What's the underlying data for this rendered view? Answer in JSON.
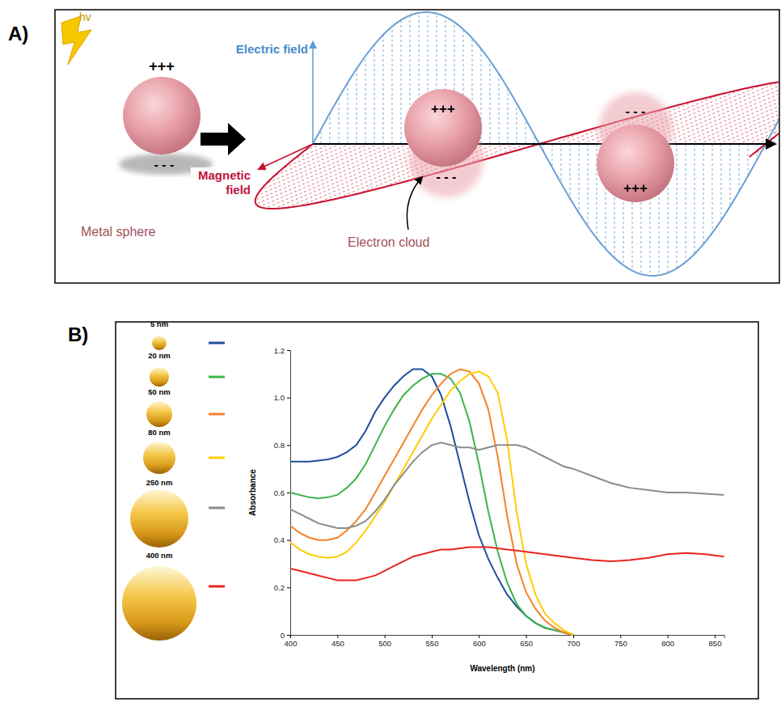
{
  "diagram": {
    "label": "A)",
    "photon": "hv",
    "electric_field": "Electric field",
    "magnetic_field": "Magnetic field",
    "electron_cloud": "Electron cloud",
    "metal_sphere": {
      "label": "Metal sphere",
      "top_charge": "+++",
      "bottom_charge": "- - -"
    },
    "spheres": [
      {
        "top_charge": "+++",
        "bottom_charge": "- - -"
      },
      {
        "top_charge": "- - -",
        "bottom_charge": "+++"
      }
    ]
  },
  "chart_data": {
    "type": "line",
    "panel_label": "B)",
    "x_label": "Wavelength (nm)",
    "y_label": "Absorbance",
    "x": [
      400,
      410,
      420,
      430,
      440,
      450,
      460,
      470,
      480,
      490,
      500,
      510,
      520,
      530,
      540,
      550,
      560,
      570,
      580,
      590,
      600,
      610,
      620,
      630,
      640,
      650,
      660,
      670,
      680,
      690,
      700,
      720,
      740,
      760,
      780,
      800,
      820,
      840,
      860
    ],
    "series": [
      {
        "name": "5 nm",
        "color": "#1f4f9e",
        "values": [
          0.73,
          0.73,
          0.73,
          0.735,
          0.74,
          0.75,
          0.77,
          0.8,
          0.86,
          0.94,
          1.0,
          1.05,
          1.09,
          1.12,
          1.12,
          1.09,
          1.01,
          0.88,
          0.72,
          0.56,
          0.42,
          0.32,
          0.24,
          0.17,
          0.12,
          0.08,
          0.05,
          0.03,
          0.02,
          0.01,
          0,
          null,
          null,
          null,
          null,
          null,
          null,
          null,
          null
        ]
      },
      {
        "name": "20 nm",
        "color": "#3db54a",
        "values": [
          0.6,
          0.59,
          0.58,
          0.575,
          0.58,
          0.59,
          0.62,
          0.66,
          0.72,
          0.8,
          0.88,
          0.95,
          1.01,
          1.05,
          1.08,
          1.1,
          1.1,
          1.08,
          1.02,
          0.9,
          0.72,
          0.52,
          0.35,
          0.22,
          0.13,
          0.08,
          0.05,
          0.03,
          0.02,
          0.01,
          0,
          null,
          null,
          null,
          null,
          null,
          null,
          null,
          null
        ]
      },
      {
        "name": "50 nm",
        "color": "#f5822a",
        "values": [
          0.46,
          0.43,
          0.41,
          0.4,
          0.4,
          0.41,
          0.44,
          0.48,
          0.53,
          0.6,
          0.67,
          0.74,
          0.81,
          0.88,
          0.95,
          1.01,
          1.06,
          1.1,
          1.12,
          1.11,
          1.06,
          0.95,
          0.75,
          0.5,
          0.3,
          0.18,
          0.11,
          0.06,
          0.03,
          0.01,
          0,
          null,
          null,
          null,
          null,
          null,
          null,
          null,
          null
        ]
      },
      {
        "name": "80 nm",
        "color": "#ffcc00",
        "values": [
          0.39,
          0.36,
          0.34,
          0.33,
          0.325,
          0.33,
          0.35,
          0.39,
          0.44,
          0.5,
          0.56,
          0.63,
          0.7,
          0.77,
          0.84,
          0.91,
          0.97,
          1.03,
          1.07,
          1.1,
          1.11,
          1.09,
          1.02,
          0.82,
          0.52,
          0.3,
          0.17,
          0.09,
          0.05,
          0.02,
          0,
          null,
          null,
          null,
          null,
          null,
          null,
          null,
          null
        ]
      },
      {
        "name": "250 nm",
        "color": "#8c8c8c",
        "values": [
          0.53,
          0.51,
          0.49,
          0.47,
          0.46,
          0.45,
          0.45,
          0.46,
          0.48,
          0.52,
          0.57,
          0.63,
          0.68,
          0.73,
          0.77,
          0.8,
          0.81,
          0.8,
          0.79,
          0.79,
          0.78,
          0.79,
          0.8,
          0.8,
          0.8,
          0.79,
          0.77,
          0.75,
          0.73,
          0.71,
          0.7,
          0.67,
          0.64,
          0.62,
          0.61,
          0.6,
          0.6,
          0.595,
          0.59
        ]
      },
      {
        "name": "400 nm",
        "color": "#e8261e",
        "values": [
          0.28,
          0.27,
          0.26,
          0.25,
          0.24,
          0.23,
          0.23,
          0.23,
          0.24,
          0.25,
          0.27,
          0.29,
          0.31,
          0.33,
          0.34,
          0.35,
          0.36,
          0.36,
          0.365,
          0.37,
          0.37,
          0.37,
          0.365,
          0.36,
          0.355,
          0.35,
          0.345,
          0.34,
          0.335,
          0.33,
          0.325,
          0.315,
          0.31,
          0.315,
          0.325,
          0.34,
          0.345,
          0.34,
          0.33
        ]
      }
    ],
    "xlim": [
      400,
      860
    ],
    "xticks": [
      400,
      450,
      500,
      550,
      600,
      650,
      700,
      750,
      800,
      850
    ],
    "ylim": [
      0,
      1.2
    ],
    "yticks": [
      0,
      0.2,
      0.4,
      0.6,
      0.8,
      {
        "value": 1,
        "label": "1.0"
      },
      1.2
    ],
    "grid": false,
    "legend": "left"
  }
}
